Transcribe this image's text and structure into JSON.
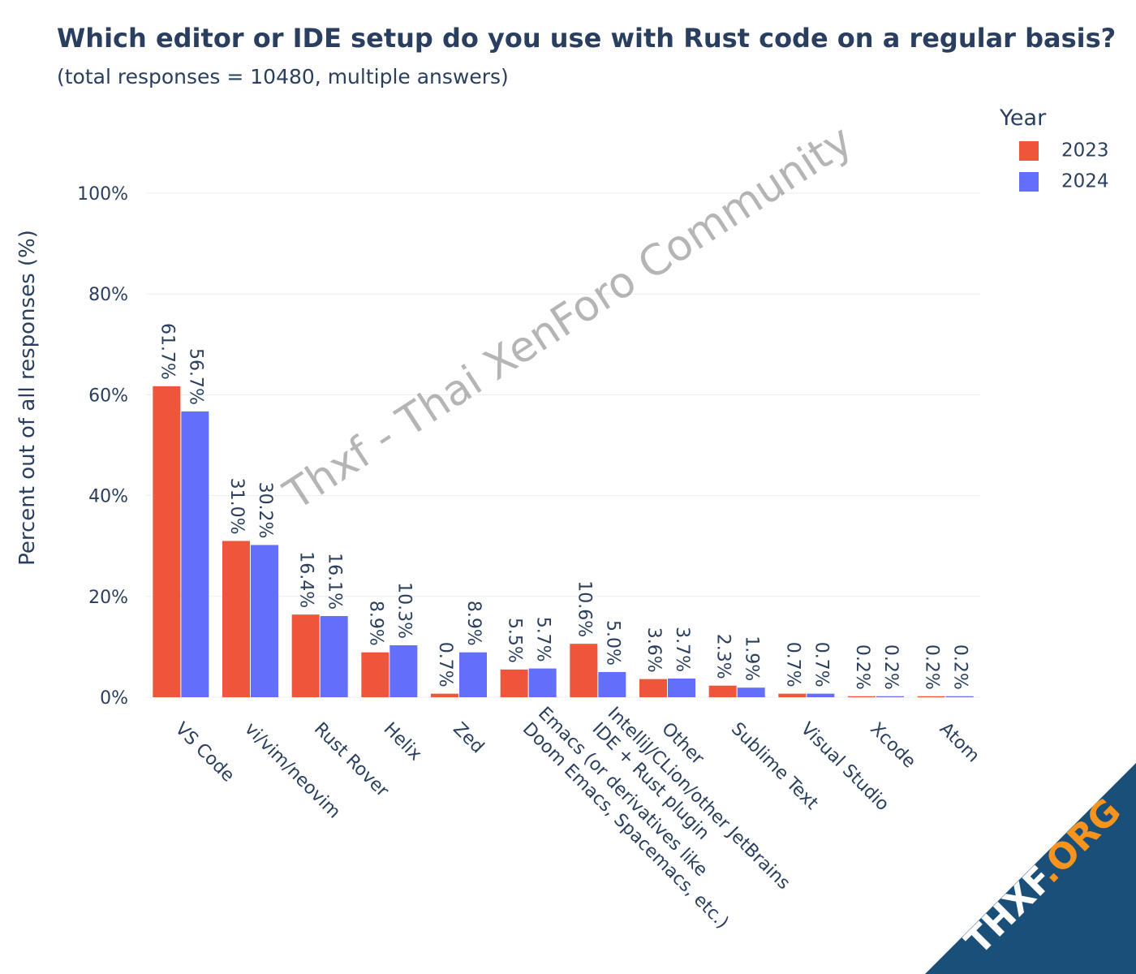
{
  "chart_data": {
    "type": "bar",
    "title": "Which editor or IDE setup do you use with Rust code on a regular basis?",
    "subtitle": "(total responses = 10480, multiple answers)",
    "ylabel": "Percent out of all responses (%)",
    "xlabel": "",
    "ylim": [
      0,
      100
    ],
    "yticks": [
      0,
      20,
      40,
      60,
      80,
      100
    ],
    "ytick_labels": [
      "0%",
      "20%",
      "40%",
      "60%",
      "80%",
      "100%"
    ],
    "grid": true,
    "legend_title": "Year",
    "legend_position": "top-right",
    "categories": [
      "VS Code",
      "vi/vim/neovim",
      "Rust Rover",
      "Helix",
      "Zed",
      "Emacs (or derivatives like\nDoom Emacs, Spacemacs, etc.)",
      "IntelliJ/CLion/other JetBrains\nIDE + Rust plugin",
      "Other",
      "Sublime Text",
      "Visual Studio",
      "Xcode",
      "Atom"
    ],
    "series": [
      {
        "name": "2023",
        "color": "#ef553b",
        "values": [
          61.7,
          31.0,
          16.4,
          8.9,
          0.7,
          5.5,
          10.6,
          3.6,
          2.3,
          0.7,
          0.2,
          0.2
        ],
        "labels": [
          "61.7%",
          "31.0%",
          "16.4%",
          "8.9%",
          "0.7%",
          "5.5%",
          "10.6%",
          "3.6%",
          "2.3%",
          "0.7%",
          "0.2%",
          "0.2%"
        ]
      },
      {
        "name": "2024",
        "color": "#636efa",
        "values": [
          56.7,
          30.2,
          16.1,
          10.3,
          8.9,
          5.7,
          5.0,
          3.7,
          1.9,
          0.7,
          0.2,
          0.2
        ],
        "labels": [
          "56.7%",
          "30.2%",
          "16.1%",
          "10.3%",
          "8.9%",
          "5.7%",
          "5.0%",
          "3.7%",
          "1.9%",
          "0.7%",
          "0.2%",
          "0.2%"
        ]
      }
    ]
  },
  "watermark": "Thxf - Thai XenForo Community",
  "logo": {
    "text_main": "THXF",
    "text_accent": ".ORG",
    "background_color": "#1a4f7a",
    "accent_color": "#f7941d"
  }
}
